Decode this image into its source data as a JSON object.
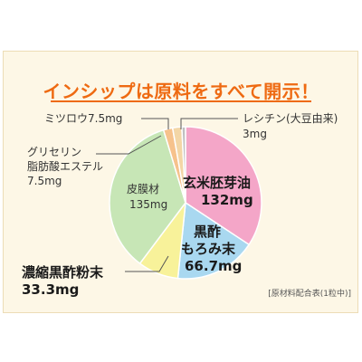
{
  "title": "インシップは原料をすべて開示！",
  "note": "[原材料配合表(1粒中)]",
  "chart_data": {
    "type": "pie",
    "unit": "mg",
    "slices": [
      {
        "name": "玄米胚芽油",
        "value": 132,
        "label": "132mg",
        "color": "#f4a6c8"
      },
      {
        "name": "黒酢もろみ末",
        "value": 66.7,
        "label": "66.7mg",
        "color": "#a9d8f0"
      },
      {
        "name": "濃縮黒酢粉末",
        "value": 33.3,
        "label": "33.3mg",
        "color": "#f8f29a"
      },
      {
        "name": "皮膜材",
        "value": 135,
        "label": "135mg",
        "color": "#c7e6b6"
      },
      {
        "name": "グリセリン脂肪酸エステル",
        "value": 7.5,
        "label": "7.5mg",
        "color": "#f6c28c"
      },
      {
        "name": "ミツロウ",
        "value": 7.5,
        "label": "7.5mg",
        "color": "#f3d6a6"
      },
      {
        "name": "レシチン(大豆由来)",
        "value": 3,
        "label": "3mg",
        "color": "#c0c0c0"
      }
    ]
  },
  "labels": {
    "genmai_name": "玄米胚芽油",
    "genmai_value": "132mg",
    "kurozu_name1": "黒酢",
    "kurozu_name2": "もろみ末",
    "kurozu_value": "66.7mg",
    "noushuku_name": "濃縮黒酢粉末",
    "noushuku_value": "33.3mg",
    "himaku_name": "皮膜材",
    "himaku_value": "135mg",
    "glycerin_line1": "グリセリン",
    "glycerin_line2": "脂肪酸エステル",
    "glycerin_value": "7.5mg",
    "mitsurou": "ミツロウ7.5mg",
    "lecithin_name": "レシチン(大豆由来)",
    "lecithin_value": "3mg"
  }
}
